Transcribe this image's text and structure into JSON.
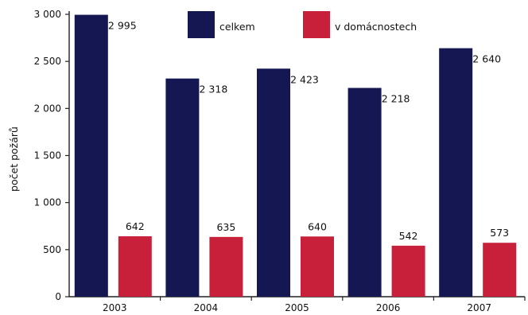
{
  "chart_data": {
    "type": "bar",
    "title": "",
    "xlabel": "",
    "ylabel": "počet požárů",
    "categories": [
      "2003",
      "2004",
      "2005",
      "2006",
      "2007"
    ],
    "series": [
      {
        "name": "celkem",
        "values": [
          2995,
          2318,
          2423,
          2218,
          2640
        ],
        "color": "#141752",
        "labels": [
          "2 995",
          "2 318",
          "2 423",
          "2 218",
          "2 640"
        ]
      },
      {
        "name": "v domácnostech",
        "values": [
          642,
          635,
          640,
          542,
          573
        ],
        "color": "#c8203a",
        "labels": [
          "642",
          "635",
          "640",
          "542",
          "573"
        ]
      }
    ],
    "ylim": [
      0,
      3000
    ],
    "yticks": [
      0,
      500,
      1000,
      1500,
      2000,
      2500,
      3000
    ],
    "ytick_labels": [
      "0",
      "500",
      "1 000",
      "1 500",
      "2 000",
      "2 500",
      "3 000"
    ],
    "grid": false,
    "legend_position": "top"
  }
}
